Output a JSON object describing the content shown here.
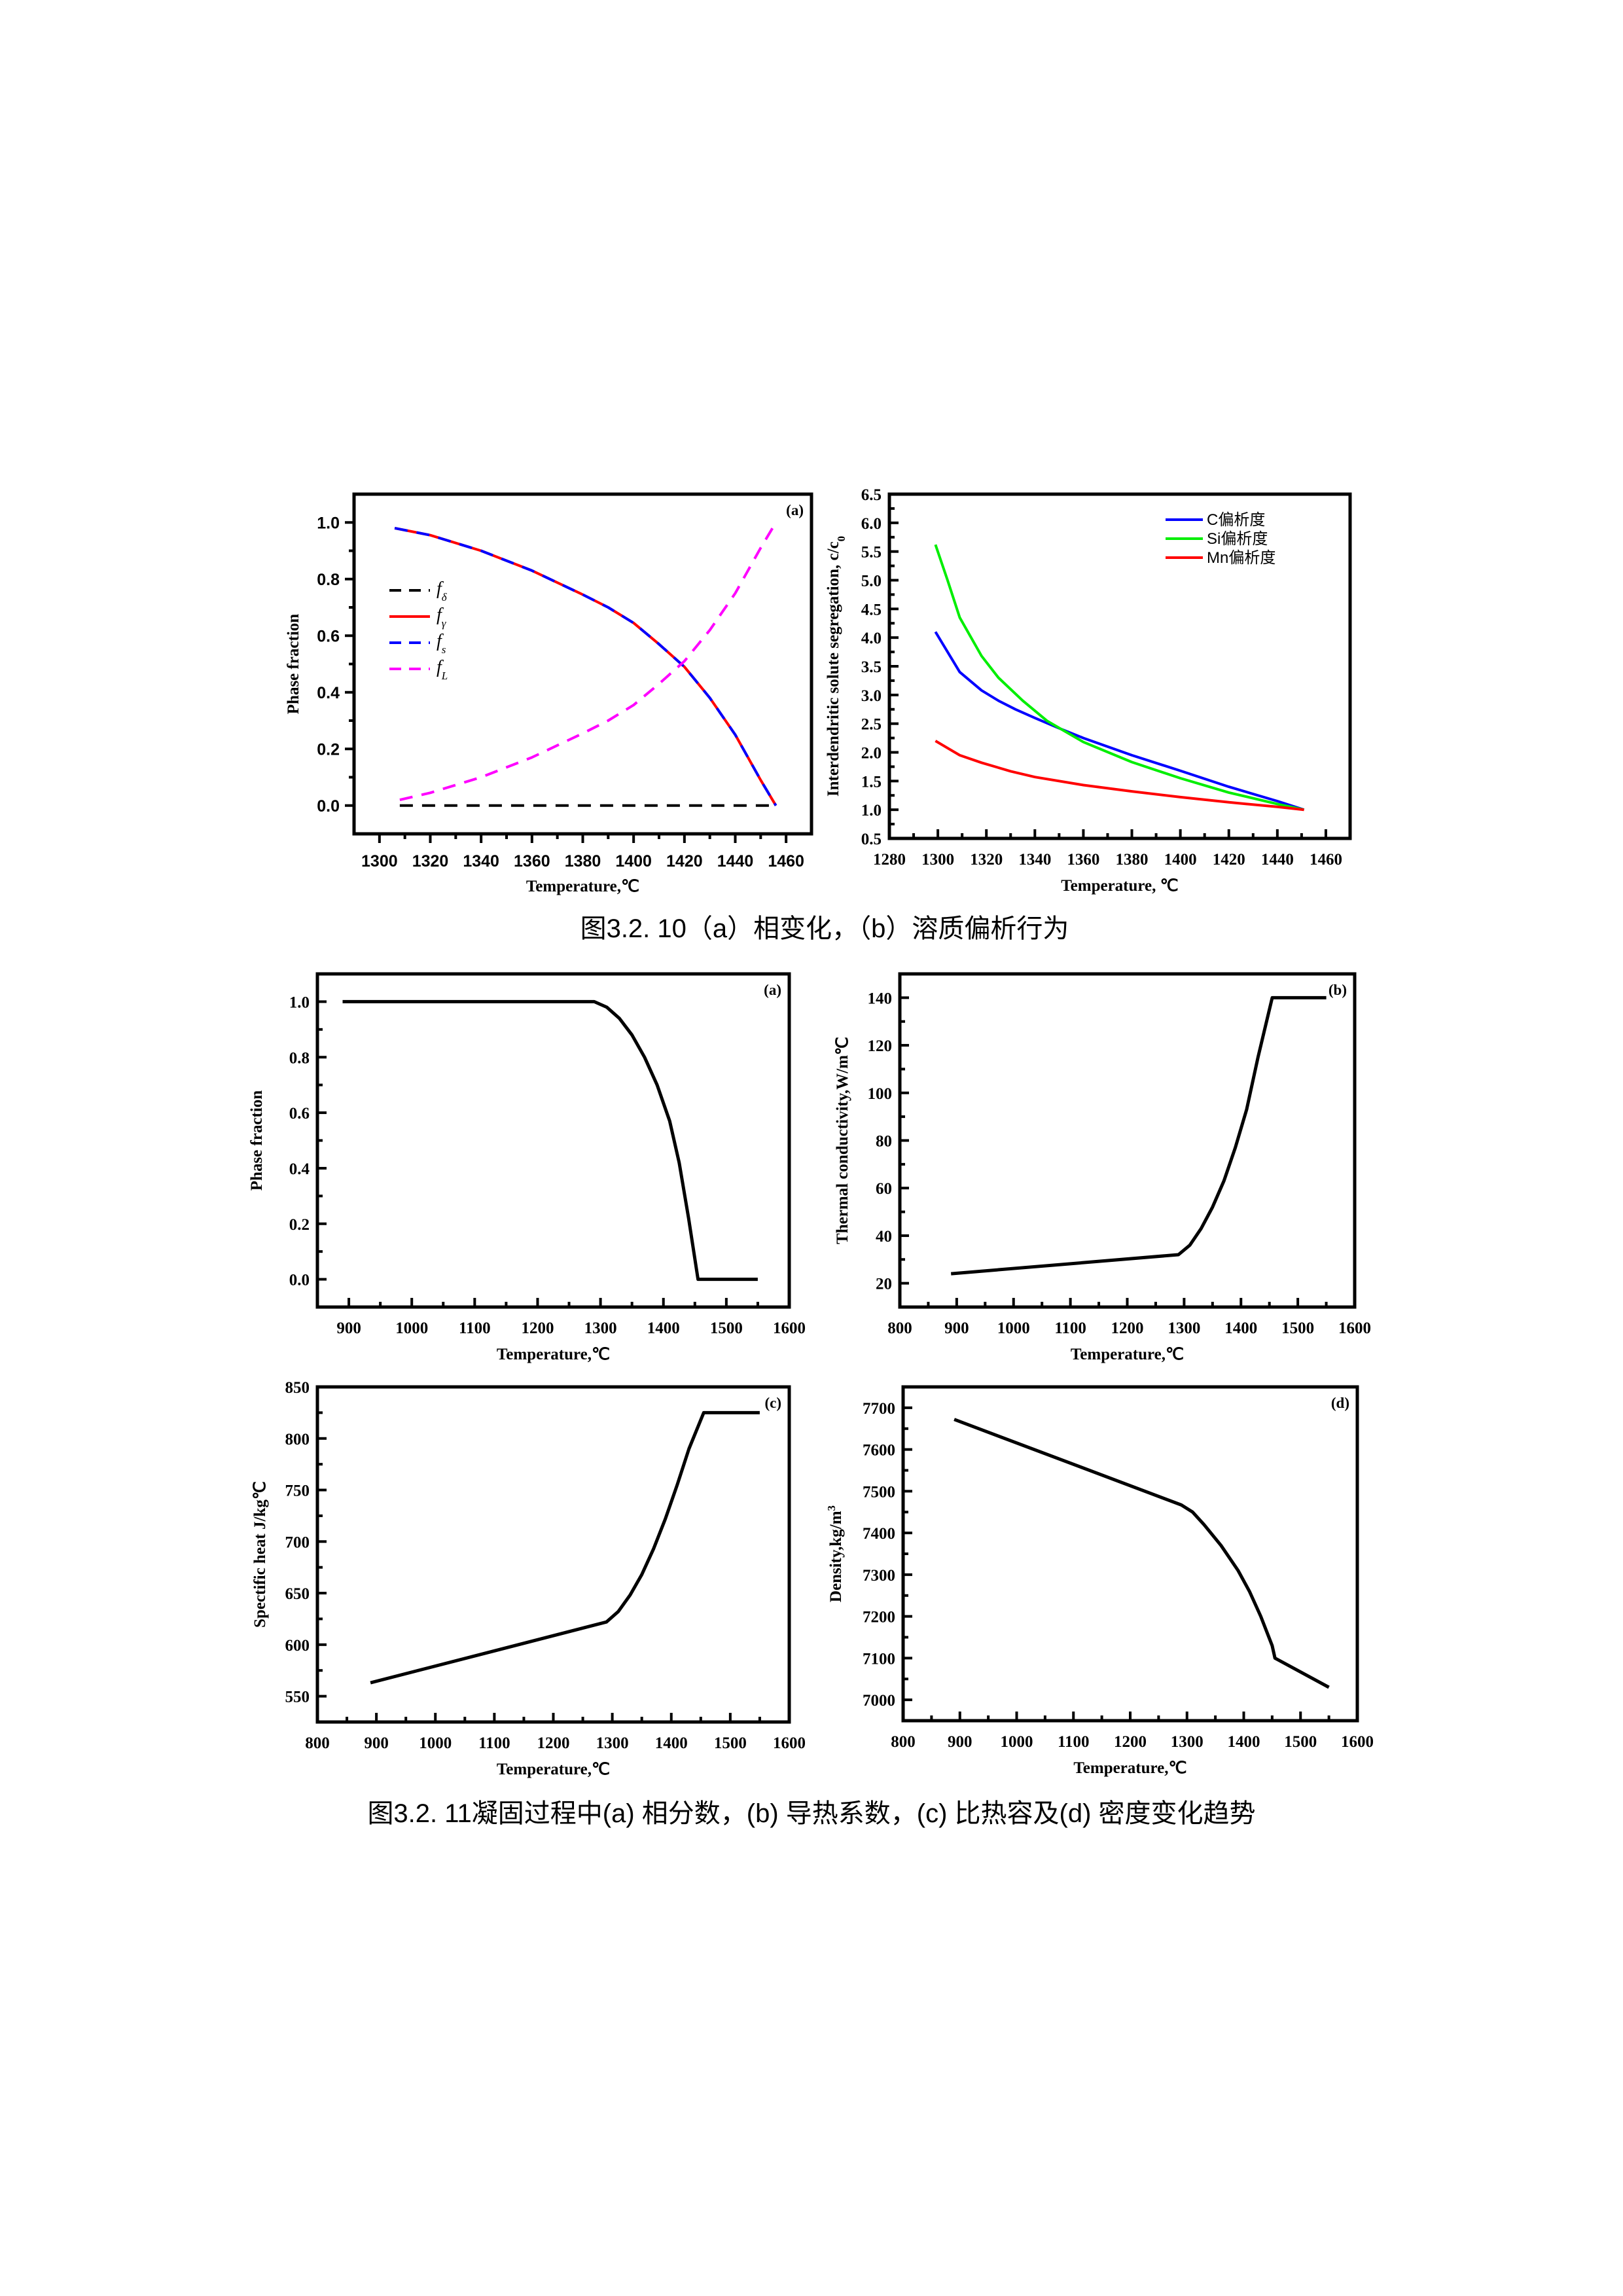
{
  "captions": {
    "fig_3_2_10": "图3.2. 10（a）相变化，（b）溶质偏析行为",
    "fig_3_2_11": "图3.2. 11凝固过程中(a) 相分数，(b) 导热系数，(c) 比热容及(d) 密度变化趋势"
  },
  "chart_data": [
    {
      "type": "line",
      "panel": "(a)",
      "xlabel": "Temperature,℃",
      "ylabel": "Phase fraction",
      "ylabel_script": "",
      "xlim": [
        1290,
        1470
      ],
      "ylim": [
        -0.1,
        1.1
      ],
      "xticks": [
        1300,
        1320,
        1340,
        1360,
        1380,
        1400,
        1420,
        1440,
        1460
      ],
      "xticklabels": [
        "1300",
        "1320",
        "1340",
        "1360",
        "1380",
        "1400",
        "1420",
        "1440",
        "1460"
      ],
      "yticks": [
        0,
        0.2,
        0.4,
        0.6,
        0.8,
        1.0
      ],
      "yticklabels": [
        "0.0",
        "0.2",
        "0.4",
        "0.6",
        "0.8",
        "1.0"
      ],
      "legend_position": "left-middle",
      "series": [
        {
          "name": "f",
          "sub": "δ",
          "color": "#000000",
          "style": "dashed",
          "x": [
            1308,
            1456
          ],
          "y": [
            0,
            0
          ]
        },
        {
          "name": "f",
          "sub": "γ",
          "color": "#ff0000",
          "style": "solid",
          "x": [
            1306,
            1320,
            1340,
            1360,
            1380,
            1390,
            1400,
            1410,
            1420,
            1430,
            1440,
            1445,
            1450,
            1456
          ],
          "y": [
            0.98,
            0.955,
            0.9,
            0.83,
            0.745,
            0.7,
            0.645,
            0.57,
            0.49,
            0.38,
            0.25,
            0.17,
            0.09,
            0.0
          ]
        },
        {
          "name": "f",
          "sub": "s",
          "color": "#0000ff",
          "style": "dashed",
          "x": [
            1306,
            1320,
            1340,
            1360,
            1380,
            1390,
            1400,
            1410,
            1420,
            1430,
            1440,
            1445,
            1450,
            1456
          ],
          "y": [
            0.98,
            0.955,
            0.9,
            0.83,
            0.745,
            0.7,
            0.645,
            0.57,
            0.49,
            0.38,
            0.25,
            0.17,
            0.09,
            0.0
          ]
        },
        {
          "name": "f",
          "sub": "L",
          "color": "#ff00ff",
          "style": "dashed",
          "x": [
            1308,
            1320,
            1340,
            1360,
            1380,
            1390,
            1400,
            1410,
            1420,
            1430,
            1440,
            1445,
            1450,
            1456
          ],
          "y": [
            0.02,
            0.045,
            0.1,
            0.17,
            0.255,
            0.3,
            0.355,
            0.43,
            0.51,
            0.62,
            0.75,
            0.83,
            0.91,
            1.0
          ]
        }
      ]
    },
    {
      "type": "line",
      "panel": "",
      "xlabel": "Temperature, ℃",
      "ylabel": "Interdendritic solute segregation, c/c",
      "ylabel_script": "0",
      "xlim": [
        1280,
        1470
      ],
      "ylim": [
        0.5,
        6.5
      ],
      "xticks": [
        1280,
        1300,
        1320,
        1340,
        1360,
        1380,
        1400,
        1420,
        1440,
        1460
      ],
      "xticklabels": [
        "1280",
        "1300",
        "1320",
        "1340",
        "1360",
        "1380",
        "1400",
        "1420",
        "1440",
        "1460"
      ],
      "yticks": [
        0.5,
        1.0,
        1.5,
        2.0,
        2.5,
        3.0,
        3.5,
        4.0,
        4.5,
        5.0,
        5.5,
        6.0,
        6.5
      ],
      "yticklabels": [
        "0.5",
        "1.0",
        "1.5",
        "2.0",
        "2.5",
        "3.0",
        "3.5",
        "4.0",
        "4.5",
        "5.0",
        "5.5",
        "6.0",
        "6.5"
      ],
      "legend_position": "top-right",
      "series": [
        {
          "name": "C偏析度",
          "color": "#0000ff",
          "style": "solid",
          "x": [
            1299,
            1309,
            1318,
            1325,
            1332,
            1340,
            1350,
            1360,
            1380,
            1400,
            1420,
            1440,
            1451
          ],
          "y": [
            4.1,
            3.4,
            3.08,
            2.9,
            2.75,
            2.6,
            2.42,
            2.25,
            1.95,
            1.68,
            1.4,
            1.15,
            1.0
          ]
        },
        {
          "name": "Si偏析度",
          "color": "#00ee00",
          "style": "solid",
          "x": [
            1299,
            1304,
            1309,
            1318,
            1325,
            1335,
            1345,
            1351,
            1360,
            1380,
            1400,
            1420,
            1440,
            1451
          ],
          "y": [
            5.62,
            5.0,
            4.35,
            3.68,
            3.3,
            2.9,
            2.55,
            2.4,
            2.18,
            1.83,
            1.55,
            1.3,
            1.1,
            1.0
          ]
        },
        {
          "name": "Mn偏析度",
          "color": "#ff0000",
          "style": "solid",
          "x": [
            1299,
            1309,
            1318,
            1330,
            1340,
            1360,
            1380,
            1400,
            1420,
            1440,
            1451
          ],
          "y": [
            2.2,
            1.95,
            1.82,
            1.67,
            1.57,
            1.43,
            1.32,
            1.22,
            1.13,
            1.05,
            1.0
          ]
        }
      ]
    },
    {
      "type": "line",
      "panel": "(a)",
      "xlabel": "Temperature,℃",
      "ylabel": "Phase fraction",
      "ylabel_script": "",
      "xlim": [
        850,
        1600
      ],
      "ylim": [
        -0.1,
        1.1
      ],
      "xticks": [
        900,
        1000,
        1100,
        1200,
        1300,
        1400,
        1500,
        1600
      ],
      "xticklabels": [
        "900",
        "1000",
        "1100",
        "1200",
        "1300",
        "1400",
        "1500",
        "1600"
      ],
      "yticks": [
        0,
        0.2,
        0.4,
        0.6,
        0.8,
        1.0
      ],
      "yticklabels": [
        "0.0",
        "0.2",
        "0.4",
        "0.6",
        "0.8",
        "1.0"
      ],
      "series": [
        {
          "name": "",
          "color": "#000000",
          "style": "solid",
          "x": [
            890,
            1290,
            1310,
            1330,
            1350,
            1370,
            1390,
            1410,
            1425,
            1440,
            1455,
            1550
          ],
          "y": [
            1.0,
            1.0,
            0.98,
            0.94,
            0.88,
            0.8,
            0.7,
            0.57,
            0.42,
            0.22,
            0.0,
            0.0
          ]
        }
      ]
    },
    {
      "type": "line",
      "panel": "(b)",
      "xlabel": "Temperature,℃",
      "ylabel": "Thermal conductivity,W/m℃",
      "ylabel_script": "",
      "xlim": [
        800,
        1600
      ],
      "ylim": [
        10,
        150
      ],
      "xticks": [
        800,
        900,
        1000,
        1100,
        1200,
        1300,
        1400,
        1500,
        1600
      ],
      "xticklabels": [
        "800",
        "900",
        "1000",
        "1100",
        "1200",
        "1300",
        "1400",
        "1500",
        "1600"
      ],
      "yticks": [
        20,
        40,
        60,
        80,
        100,
        120,
        140
      ],
      "yticklabels": [
        "20",
        "40",
        "60",
        "80",
        "100",
        "120",
        "140"
      ],
      "series": [
        {
          "name": "",
          "color": "#000000",
          "style": "solid",
          "x": [
            890,
            1290,
            1310,
            1330,
            1350,
            1370,
            1390,
            1410,
            1430,
            1455,
            1550
          ],
          "y": [
            24,
            32,
            36,
            43,
            52,
            63,
            77,
            93,
            115,
            140,
            140
          ]
        }
      ]
    },
    {
      "type": "line",
      "panel": "(c)",
      "xlabel": "Temperature,℃",
      "ylabel": "Spectific heat J/kg℃",
      "ylabel_script": "",
      "xlim": [
        800,
        1600
      ],
      "ylim": [
        525,
        850
      ],
      "xticks": [
        800,
        900,
        1000,
        1100,
        1200,
        1300,
        1400,
        1500,
        1600
      ],
      "xticklabels": [
        "800",
        "900",
        "1000",
        "1100",
        "1200",
        "1300",
        "1400",
        "1500",
        "1600"
      ],
      "yticks": [
        550,
        600,
        650,
        700,
        750,
        800,
        850
      ],
      "yticklabels": [
        "550",
        "600",
        "650",
        "700",
        "750",
        "800",
        "850"
      ],
      "series": [
        {
          "name": "",
          "color": "#000000",
          "style": "solid",
          "x": [
            890,
            1290,
            1310,
            1330,
            1350,
            1370,
            1390,
            1410,
            1430,
            1455,
            1550
          ],
          "y": [
            563,
            622,
            632,
            648,
            668,
            693,
            722,
            755,
            790,
            825,
            825
          ]
        }
      ]
    },
    {
      "type": "line",
      "panel": "(d)",
      "xlabel": "Temperature,℃",
      "ylabel": "Density,kg/m",
      "ylabel_script": "3",
      "xlim": [
        800,
        1600
      ],
      "ylim": [
        6950,
        7750
      ],
      "xticks": [
        800,
        900,
        1000,
        1100,
        1200,
        1300,
        1400,
        1500,
        1600
      ],
      "xticklabels": [
        "800",
        "900",
        "1000",
        "1100",
        "1200",
        "1300",
        "1400",
        "1500",
        "1600"
      ],
      "yticks": [
        7000,
        7100,
        7200,
        7300,
        7400,
        7500,
        7600,
        7700
      ],
      "yticklabels": [
        "7000",
        "7100",
        "7200",
        "7300",
        "7400",
        "7500",
        "7600",
        "7700"
      ],
      "series": [
        {
          "name": "",
          "color": "#000000",
          "style": "solid",
          "x": [
            890,
            1290,
            1310,
            1330,
            1360,
            1390,
            1410,
            1430,
            1450,
            1455,
            1550
          ],
          "y": [
            7672,
            7467,
            7450,
            7420,
            7370,
            7310,
            7260,
            7200,
            7130,
            7100,
            7030
          ]
        }
      ]
    }
  ]
}
